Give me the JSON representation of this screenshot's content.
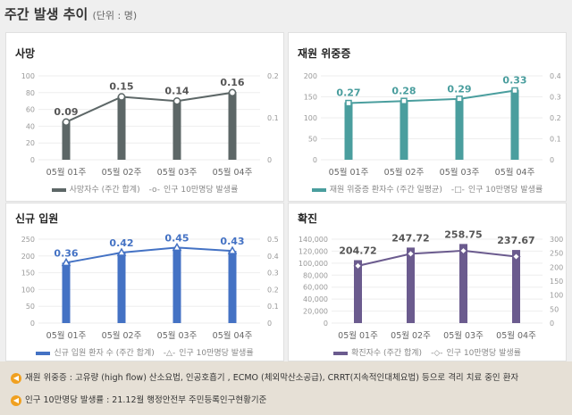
{
  "header": {
    "title": "주간 발생 추이",
    "unit": "(단위 : 명)"
  },
  "chart_data": [
    {
      "type": "bar+line",
      "title": "사망",
      "categories": [
        "05월 01주",
        "05월 02주",
        "05월 03주",
        "05월 04주"
      ],
      "series": [
        {
          "name": "사망자수 (주간 합계)",
          "type": "bar",
          "axis": "left",
          "values": [
            46,
            76,
            71,
            81
          ]
        },
        {
          "name": "인구 10만명당 발생률",
          "type": "line",
          "axis": "right",
          "marker": "circle",
          "values": [
            0.09,
            0.15,
            0.14,
            0.16
          ],
          "labels": [
            "0.09",
            "0.15",
            "0.14",
            "0.16"
          ]
        }
      ],
      "ylim": [
        0,
        100
      ],
      "yticks": [
        "0",
        "20",
        "40",
        "60",
        "80",
        "100"
      ],
      "y2lim": [
        0,
        0.2
      ],
      "y2ticks": [
        "0",
        "0.1",
        "0.2"
      ],
      "color": "#5d6767",
      "label_color": "#555555"
    },
    {
      "type": "bar+line",
      "title": "재원 위중증",
      "categories": [
        "05월 01주",
        "05월 02주",
        "05월 03주",
        "05월 04주"
      ],
      "series": [
        {
          "name": "재원 위중증 환자수 (주간 일평균)",
          "type": "bar",
          "axis": "left",
          "values": [
            137,
            142,
            146,
            167
          ]
        },
        {
          "name": "인구 10만명당 발생률",
          "type": "line",
          "axis": "right",
          "marker": "square",
          "values": [
            0.27,
            0.28,
            0.29,
            0.33
          ],
          "labels": [
            "0.27",
            "0.28",
            "0.29",
            "0.33"
          ]
        }
      ],
      "ylim": [
        0,
        200
      ],
      "yticks": [
        "0",
        "50",
        "100",
        "150",
        "200"
      ],
      "y2lim": [
        0,
        0.4
      ],
      "y2ticks": [
        "0",
        "0.1",
        "0.2",
        "0.3",
        "0.4"
      ],
      "color": "#4a9e9e",
      "label_color": "#4a9e9e"
    },
    {
      "type": "bar+line",
      "title": "신규 입원",
      "categories": [
        "05월 01주",
        "05월 02주",
        "05월 03주",
        "05월 04주"
      ],
      "series": [
        {
          "name": "신규 입원 환자 수 (주간 합계)",
          "type": "bar",
          "axis": "left",
          "values": [
            180,
            210,
            225,
            215
          ]
        },
        {
          "name": "인구 10만명당 발생률",
          "type": "line",
          "axis": "right",
          "marker": "triangle",
          "values": [
            0.36,
            0.42,
            0.45,
            0.43
          ],
          "labels": [
            "0.36",
            "0.42",
            "0.45",
            "0.43"
          ]
        }
      ],
      "ylim": [
        0,
        250
      ],
      "yticks": [
        "0",
        "50",
        "100",
        "150",
        "200",
        "250"
      ],
      "y2lim": [
        0,
        0.5
      ],
      "y2ticks": [
        "0",
        "0.1",
        "0.2",
        "0.3",
        "0.4",
        "0.5"
      ],
      "color": "#4472c4",
      "label_color": "#4472c4"
    },
    {
      "type": "bar+line",
      "title": "확진",
      "categories": [
        "05월 01주",
        "05월 02주",
        "05월 03주",
        "05월 04주"
      ],
      "series": [
        {
          "name": "확진자수 (주간 합계)",
          "type": "bar",
          "axis": "left",
          "values": [
            105000,
            126000,
            132000,
            122000
          ]
        },
        {
          "name": "인구 10만명당 발생률",
          "type": "line",
          "axis": "right",
          "marker": "diamond",
          "values": [
            204.72,
            247.72,
            258.75,
            237.67
          ],
          "labels": [
            "204.72",
            "247.72",
            "258.75",
            "237.67"
          ]
        }
      ],
      "ylim": [
        0,
        140000
      ],
      "yticks": [
        "0",
        "20,000",
        "40,000",
        "60,000",
        "80,000",
        "100,000",
        "120,000",
        "140,000"
      ],
      "y2lim": [
        0,
        300
      ],
      "y2ticks": [
        "0",
        "50",
        "100",
        "150",
        "200",
        "250",
        "300"
      ],
      "color": "#6b5b8e",
      "label_color": "#555555"
    }
  ],
  "notes": [
    "재원 위중증 : 고유량 (high flow) 산소요법, 인공호흡기 , ECMO (체외막산소공급), CRRT(지속적인대체요법) 등으로 격리 치료 중인 환자",
    "인구 10만명당 발생률 : 21.12월 행정안전부 주민등록인구현황기준"
  ]
}
